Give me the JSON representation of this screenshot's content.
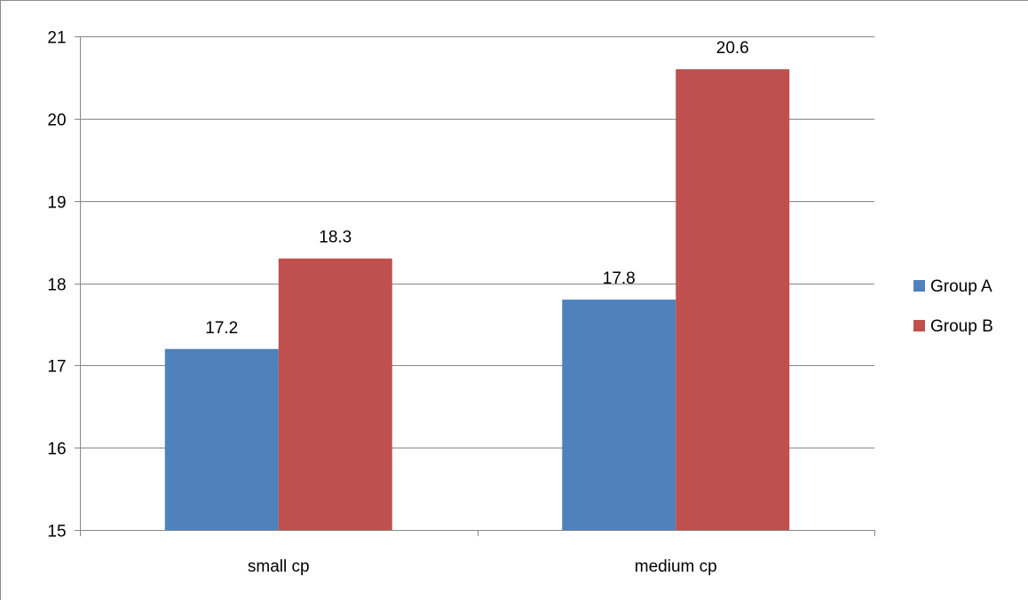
{
  "chart_data": {
    "type": "bar",
    "categories": [
      "small cp",
      "medium cp"
    ],
    "series": [
      {
        "name": "Group A",
        "values": [
          17.2,
          17.8
        ],
        "color": "#4F81BD"
      },
      {
        "name": "Group B",
        "values": [
          18.3,
          20.6
        ],
        "color": "#C0504D"
      }
    ],
    "data_labels": [
      [
        "17.2",
        "17.8"
      ],
      [
        "18.3",
        "20.6"
      ]
    ],
    "y_ticks": [
      "15",
      "16",
      "17",
      "18",
      "19",
      "20",
      "21"
    ],
    "ylim": [
      15,
      21
    ],
    "title": "",
    "xlabel": "",
    "ylabel": "",
    "grid": true,
    "legend_position": "right",
    "colors": {
      "gridline": "#868686",
      "axis": "#868686",
      "frame_border": "#8c8c8c"
    }
  }
}
